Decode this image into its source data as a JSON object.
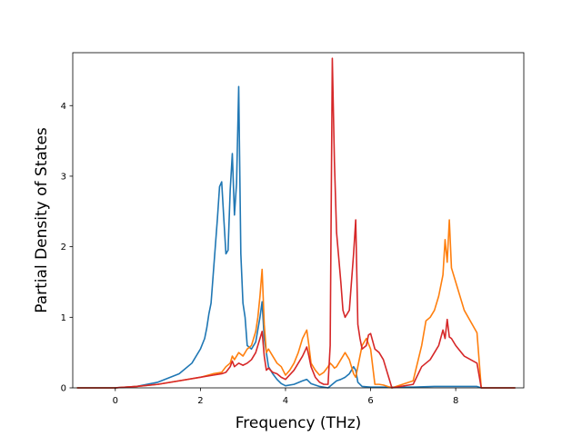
{
  "chart_data": {
    "type": "line",
    "title": "",
    "xlabel": "Frequency (THz)",
    "ylabel": "Partial Density of States",
    "xlim": [
      -1.0,
      9.6
    ],
    "ylim": [
      0,
      4.75
    ],
    "xticks": [
      0,
      2,
      4,
      6,
      8
    ],
    "xtick_labels": [
      "0",
      "2",
      "4",
      "6",
      "8"
    ],
    "yticks": [
      0,
      1,
      2,
      3,
      4
    ],
    "ytick_labels": [
      "0",
      "1",
      "2",
      "3",
      "4"
    ],
    "grid": false,
    "legend": "none",
    "series": [
      {
        "color": "#1f77b4",
        "x": [
          -0.9,
          0.0,
          0.5,
          1.0,
          1.5,
          1.8,
          2.0,
          2.1,
          2.15,
          2.2,
          2.25,
          2.3,
          2.35,
          2.4,
          2.45,
          2.5,
          2.55,
          2.6,
          2.65,
          2.7,
          2.75,
          2.8,
          2.85,
          2.9,
          2.95,
          3.0,
          3.05,
          3.1,
          3.2,
          3.3,
          3.4,
          3.45,
          3.5,
          3.6,
          3.7,
          3.8,
          3.9,
          4.0,
          4.2,
          4.4,
          4.5,
          4.6,
          4.8,
          5.0,
          5.1,
          5.2,
          5.3,
          5.4,
          5.5,
          5.55,
          5.6,
          5.65,
          5.7,
          5.8,
          6.0,
          6.5,
          7.0,
          7.5,
          8.0,
          8.5,
          8.6,
          9.4
        ],
        "y": [
          0.0,
          0.0,
          0.02,
          0.08,
          0.2,
          0.35,
          0.55,
          0.7,
          0.85,
          1.05,
          1.2,
          1.6,
          2.0,
          2.4,
          2.85,
          2.92,
          2.4,
          1.9,
          1.95,
          2.8,
          3.32,
          2.45,
          2.9,
          4.27,
          1.9,
          1.2,
          1.0,
          0.6,
          0.55,
          0.65,
          1.0,
          1.22,
          0.7,
          0.3,
          0.2,
          0.12,
          0.06,
          0.03,
          0.05,
          0.1,
          0.12,
          0.06,
          0.02,
          0.0,
          0.05,
          0.1,
          0.12,
          0.15,
          0.2,
          0.25,
          0.3,
          0.25,
          0.08,
          0.02,
          0.01,
          0.01,
          0.01,
          0.02,
          0.02,
          0.02,
          0.0,
          0.0
        ]
      },
      {
        "color": "#ff7f0e",
        "x": [
          -0.9,
          0.0,
          0.5,
          1.0,
          1.5,
          2.0,
          2.3,
          2.5,
          2.6,
          2.7,
          2.75,
          2.8,
          2.85,
          2.9,
          3.0,
          3.1,
          3.2,
          3.3,
          3.35,
          3.4,
          3.45,
          3.5,
          3.55,
          3.6,
          3.7,
          3.8,
          3.9,
          4.0,
          4.1,
          4.2,
          4.3,
          4.4,
          4.5,
          4.55,
          4.6,
          4.7,
          4.8,
          4.9,
          5.0,
          5.05,
          5.1,
          5.15,
          5.2,
          5.3,
          5.4,
          5.5,
          5.6,
          5.65,
          5.7,
          5.8,
          5.9,
          6.0,
          6.1,
          6.2,
          6.3,
          6.5,
          7.0,
          7.2,
          7.3,
          7.4,
          7.5,
          7.6,
          7.7,
          7.75,
          7.8,
          7.85,
          7.9,
          8.0,
          8.2,
          8.5,
          8.6,
          9.4
        ],
        "y": [
          0.0,
          0.0,
          0.02,
          0.05,
          0.1,
          0.15,
          0.2,
          0.22,
          0.3,
          0.35,
          0.45,
          0.4,
          0.45,
          0.5,
          0.45,
          0.55,
          0.6,
          0.8,
          1.0,
          1.3,
          1.68,
          0.9,
          0.5,
          0.55,
          0.45,
          0.35,
          0.3,
          0.18,
          0.25,
          0.35,
          0.5,
          0.7,
          0.82,
          0.6,
          0.35,
          0.25,
          0.18,
          0.22,
          0.3,
          0.35,
          0.32,
          0.28,
          0.3,
          0.4,
          0.5,
          0.4,
          0.2,
          0.15,
          0.3,
          0.6,
          0.7,
          0.55,
          0.05,
          0.05,
          0.04,
          0.0,
          0.1,
          0.6,
          0.95,
          1.0,
          1.1,
          1.3,
          1.6,
          2.1,
          1.78,
          2.38,
          1.7,
          1.5,
          1.1,
          0.78,
          0.0,
          0.0
        ]
      },
      {
        "color": "#d62728",
        "x": [
          -0.9,
          0.0,
          0.5,
          1.0,
          1.5,
          2.0,
          2.3,
          2.5,
          2.6,
          2.7,
          2.75,
          2.8,
          2.9,
          3.0,
          3.1,
          3.2,
          3.3,
          3.4,
          3.45,
          3.5,
          3.55,
          3.6,
          3.7,
          3.8,
          3.9,
          4.0,
          4.2,
          4.4,
          4.5,
          4.55,
          4.6,
          4.7,
          4.8,
          4.9,
          5.0,
          5.05,
          5.1,
          5.15,
          5.2,
          5.3,
          5.35,
          5.4,
          5.5,
          5.6,
          5.65,
          5.7,
          5.75,
          5.8,
          5.9,
          5.95,
          6.0,
          6.1,
          6.2,
          6.3,
          6.4,
          6.5,
          7.0,
          7.2,
          7.4,
          7.5,
          7.6,
          7.7,
          7.75,
          7.8,
          7.85,
          7.9,
          8.0,
          8.2,
          8.5,
          8.6,
          9.4
        ],
        "y": [
          0.0,
          0.0,
          0.02,
          0.05,
          0.1,
          0.15,
          0.18,
          0.2,
          0.22,
          0.3,
          0.38,
          0.3,
          0.35,
          0.32,
          0.35,
          0.4,
          0.5,
          0.7,
          0.8,
          0.45,
          0.25,
          0.28,
          0.22,
          0.2,
          0.15,
          0.12,
          0.25,
          0.45,
          0.58,
          0.45,
          0.3,
          0.15,
          0.08,
          0.05,
          0.05,
          0.6,
          4.67,
          3.2,
          2.2,
          1.5,
          1.1,
          1.0,
          1.1,
          1.9,
          2.38,
          0.9,
          0.7,
          0.55,
          0.6,
          0.75,
          0.77,
          0.55,
          0.5,
          0.4,
          0.2,
          0.0,
          0.05,
          0.3,
          0.4,
          0.5,
          0.6,
          0.82,
          0.7,
          0.97,
          0.72,
          0.7,
          0.6,
          0.45,
          0.35,
          0.0,
          0.0
        ]
      }
    ]
  }
}
